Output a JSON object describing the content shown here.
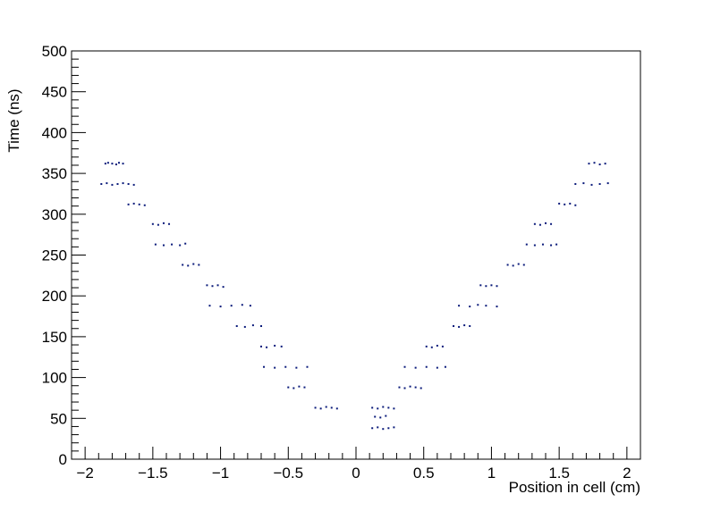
{
  "chart_data": {
    "type": "scatter",
    "title": "",
    "xlabel": "Position in cell (cm)",
    "ylabel": "Time (ns)",
    "xlim": [
      -2.1,
      2.1
    ],
    "ylim": [
      0,
      500
    ],
    "x_ticks": [
      -2,
      -1.5,
      -1,
      -0.5,
      0,
      0.5,
      1,
      1.5,
      2
    ],
    "x_tick_labels": [
      "−2",
      "−1.5",
      "−1",
      "−0.5",
      "0",
      "0.5",
      "1",
      "1.5",
      "2"
    ],
    "y_ticks": [
      0,
      50,
      100,
      150,
      200,
      250,
      300,
      350,
      400,
      450,
      500
    ],
    "y_tick_labels": [
      "0",
      "50",
      "100",
      "150",
      "200",
      "250",
      "300",
      "350",
      "400",
      "450",
      "500"
    ],
    "grid": false,
    "legend": "none",
    "marker_color": "#0a1a7a",
    "series": [
      {
        "points": [
          [
            -1.85,
            362
          ],
          [
            -1.83,
            363
          ],
          [
            -1.8,
            362
          ],
          [
            -1.77,
            361
          ],
          [
            -1.75,
            363
          ],
          [
            -1.72,
            362
          ],
          [
            -1.88,
            337
          ],
          [
            -1.84,
            338
          ],
          [
            -1.8,
            336
          ],
          [
            -1.76,
            337
          ],
          [
            -1.72,
            338
          ],
          [
            -1.68,
            337
          ],
          [
            -1.64,
            336
          ],
          [
            -1.68,
            312
          ],
          [
            -1.64,
            313
          ],
          [
            -1.6,
            312
          ],
          [
            -1.56,
            311
          ],
          [
            -1.5,
            288
          ],
          [
            -1.46,
            287
          ],
          [
            -1.42,
            289
          ],
          [
            -1.38,
            288
          ],
          [
            -1.48,
            263
          ],
          [
            -1.42,
            262
          ],
          [
            -1.36,
            263
          ],
          [
            -1.3,
            262
          ],
          [
            -1.26,
            264
          ],
          [
            -1.28,
            238
          ],
          [
            -1.24,
            237
          ],
          [
            -1.2,
            239
          ],
          [
            -1.16,
            238
          ],
          [
            -1.1,
            213
          ],
          [
            -1.06,
            212
          ],
          [
            -1.02,
            213
          ],
          [
            -0.98,
            211
          ],
          [
            -1.08,
            188
          ],
          [
            -1.0,
            187
          ],
          [
            -0.92,
            188
          ],
          [
            -0.84,
            189
          ],
          [
            -0.78,
            188
          ],
          [
            -0.88,
            163
          ],
          [
            -0.82,
            162
          ],
          [
            -0.76,
            164
          ],
          [
            -0.7,
            163
          ],
          [
            -0.7,
            138
          ],
          [
            -0.66,
            137
          ],
          [
            -0.6,
            139
          ],
          [
            -0.55,
            138
          ],
          [
            -0.68,
            113
          ],
          [
            -0.6,
            112
          ],
          [
            -0.52,
            113
          ],
          [
            -0.44,
            112
          ],
          [
            -0.36,
            113
          ],
          [
            -0.5,
            88
          ],
          [
            -0.46,
            87
          ],
          [
            -0.42,
            89
          ],
          [
            -0.38,
            88
          ],
          [
            -0.3,
            63
          ],
          [
            -0.26,
            62
          ],
          [
            -0.22,
            64
          ],
          [
            -0.18,
            63
          ],
          [
            -0.14,
            62
          ],
          [
            0.12,
            63
          ],
          [
            0.16,
            62
          ],
          [
            0.2,
            64
          ],
          [
            0.24,
            63
          ],
          [
            0.28,
            62
          ],
          [
            0.12,
            38
          ],
          [
            0.16,
            39
          ],
          [
            0.2,
            37
          ],
          [
            0.24,
            38
          ],
          [
            0.28,
            39
          ],
          [
            0.14,
            52
          ],
          [
            0.18,
            51
          ],
          [
            0.22,
            53
          ],
          [
            0.32,
            88
          ],
          [
            0.36,
            87
          ],
          [
            0.4,
            89
          ],
          [
            0.44,
            88
          ],
          [
            0.48,
            87
          ],
          [
            0.36,
            113
          ],
          [
            0.44,
            112
          ],
          [
            0.52,
            113
          ],
          [
            0.6,
            112
          ],
          [
            0.66,
            113
          ],
          [
            0.52,
            138
          ],
          [
            0.56,
            137
          ],
          [
            0.6,
            139
          ],
          [
            0.64,
            138
          ],
          [
            0.72,
            163
          ],
          [
            0.76,
            162
          ],
          [
            0.8,
            164
          ],
          [
            0.84,
            163
          ],
          [
            0.76,
            188
          ],
          [
            0.84,
            187
          ],
          [
            0.9,
            189
          ],
          [
            0.96,
            188
          ],
          [
            1.04,
            187
          ],
          [
            0.92,
            213
          ],
          [
            0.96,
            212
          ],
          [
            1.0,
            213
          ],
          [
            1.04,
            212
          ],
          [
            1.12,
            238
          ],
          [
            1.16,
            237
          ],
          [
            1.2,
            239
          ],
          [
            1.24,
            238
          ],
          [
            1.26,
            263
          ],
          [
            1.32,
            262
          ],
          [
            1.38,
            263
          ],
          [
            1.44,
            262
          ],
          [
            1.48,
            263
          ],
          [
            1.32,
            288
          ],
          [
            1.36,
            287
          ],
          [
            1.4,
            289
          ],
          [
            1.44,
            288
          ],
          [
            1.5,
            313
          ],
          [
            1.54,
            312
          ],
          [
            1.58,
            313
          ],
          [
            1.62,
            311
          ],
          [
            1.62,
            337
          ],
          [
            1.68,
            338
          ],
          [
            1.74,
            336
          ],
          [
            1.8,
            337
          ],
          [
            1.86,
            338
          ],
          [
            1.72,
            362
          ],
          [
            1.76,
            363
          ],
          [
            1.8,
            361
          ],
          [
            1.84,
            362
          ]
        ]
      }
    ]
  }
}
